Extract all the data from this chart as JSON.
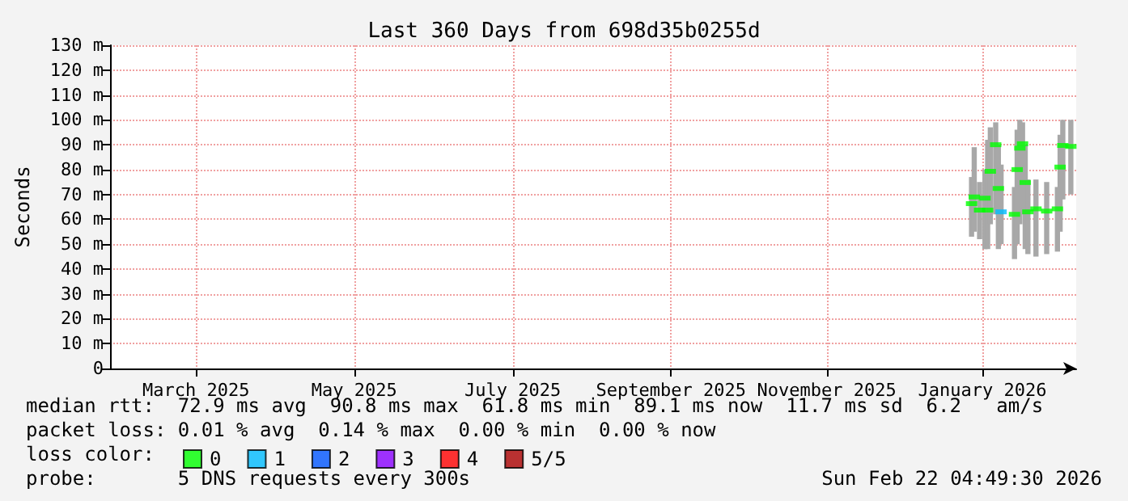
{
  "chart_data": {
    "type": "scatter",
    "title": "Last 360 Days from 698d35b0255d",
    "ylabel": "Seconds",
    "x": [
      "2026-01-14",
      "2026-01-15",
      "2026-01-17",
      "2026-01-19",
      "2026-01-20",
      "2026-01-21",
      "2026-01-23",
      "2026-01-24",
      "2026-01-25",
      "2026-01-30",
      "2026-01-31",
      "2026-02-01",
      "2026-02-02",
      "2026-02-03",
      "2026-02-04",
      "2026-02-07",
      "2026-02-11",
      "2026-02-15",
      "2026-02-16",
      "2026-02-17",
      "2026-02-20"
    ],
    "series": [
      {
        "type": "bar",
        "color": "#a8a8a8",
        "base": [
          53,
          55,
          52,
          48,
          48,
          58,
          62,
          48,
          50,
          44,
          50,
          58,
          62,
          48,
          46,
          45,
          46,
          47,
          55,
          68,
          70
        ],
        "values": [
          24,
          34,
          23,
          32,
          44,
          39,
          37,
          42,
          32,
          29,
          46,
          42,
          37,
          42,
          30,
          31,
          29,
          26,
          39,
          32,
          30
        ]
      },
      {
        "name": "0",
        "color": "#00ff00",
        "values": [
          66.3,
          69,
          63.7,
          68.5,
          63.7,
          79.3,
          90,
          72.4,
          null,
          62,
          80,
          88.6,
          90.4,
          74.8,
          63,
          64.2,
          63.3,
          64.2,
          81,
          89.7,
          89.3
        ]
      },
      {
        "name": "1",
        "color": "#00bbff",
        "values": [
          null,
          null,
          null,
          null,
          null,
          null,
          null,
          null,
          63,
          null,
          null,
          null,
          null,
          null,
          null,
          null,
          null,
          null,
          null,
          null,
          null
        ]
      },
      {
        "name": "2",
        "color": "#0055ff",
        "values": [
          null,
          null,
          null,
          null,
          null,
          null,
          null,
          null,
          null,
          null,
          null,
          null,
          null,
          null,
          null,
          null,
          null,
          null,
          null,
          null,
          null
        ]
      },
      {
        "name": "3",
        "color": "#8800ff",
        "values": [
          null,
          null,
          null,
          null,
          null,
          null,
          null,
          null,
          null,
          null,
          null,
          null,
          null,
          null,
          null,
          null,
          null,
          null,
          null,
          null,
          null
        ]
      },
      {
        "name": "4",
        "color": "#ff0000",
        "values": [
          null,
          null,
          null,
          null,
          null,
          null,
          null,
          null,
          null,
          null,
          null,
          null,
          null,
          null,
          null,
          null,
          null,
          null,
          null,
          null,
          null
        ]
      },
      {
        "name": "5/5",
        "color": "#aa0000",
        "values": [
          null,
          null,
          null,
          null,
          null,
          null,
          null,
          null,
          null,
          null,
          null,
          null,
          null,
          null,
          null,
          null,
          null,
          null,
          null,
          null,
          null
        ]
      }
    ],
    "marker": "square",
    "legend": "bottom",
    "legend_title": "loss color:",
    "grid": true,
    "xlim": [
      "2025-02-27",
      "2026-02-22"
    ],
    "xticks": [
      {
        "value": "2025-03-31",
        "label": "March 2025"
      },
      {
        "value": "2025-05-29",
        "label": "May 2025"
      },
      {
        "value": "2025-07-27",
        "label": "July 2025"
      },
      {
        "value": "2025-09-24",
        "label": "September 2025"
      },
      {
        "value": "2025-11-21",
        "label": "November 2025"
      },
      {
        "value": "2026-01-18",
        "label": "January 2026"
      }
    ],
    "ylim": [
      0,
      130
    ],
    "yticks": [
      {
        "value": 0,
        "label": "0"
      },
      {
        "value": 10,
        "label": "10 m"
      },
      {
        "value": 20,
        "label": "20 m"
      },
      {
        "value": 30,
        "label": "30 m"
      },
      {
        "value": 40,
        "label": "40 m"
      },
      {
        "value": 50,
        "label": "50 m"
      },
      {
        "value": 60,
        "label": "60 m"
      },
      {
        "value": 70,
        "label": "70 m"
      },
      {
        "value": 80,
        "label": "80 m"
      },
      {
        "value": 90,
        "label": "90 m"
      },
      {
        "value": 100,
        "label": "100 m"
      },
      {
        "value": 110,
        "label": "110 m"
      },
      {
        "value": 120,
        "label": "120 m"
      },
      {
        "value": 130,
        "label": "130 m"
      }
    ],
    "annotations": [
      "median rtt:  72.9 ms avg  90.8 ms max  61.8 ms min  89.1 ms now  11.7 ms sd  6.2   am/s",
      "packet loss: 0.01 % avg  0.14 % max  0.00 % min  0.00 % now",
      "probe:       5 DNS requests every 300s",
      "Sun Feb 22 04:49:30 2026"
    ]
  }
}
